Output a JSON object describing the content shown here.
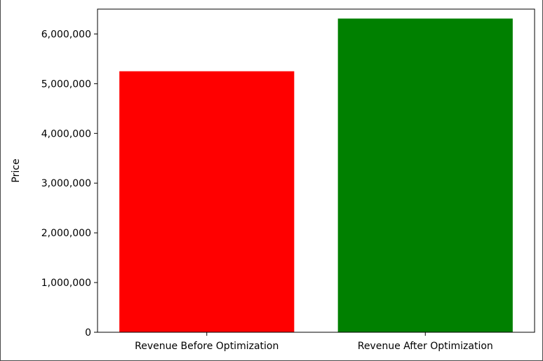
{
  "chart_data": {
    "type": "bar",
    "title": "",
    "xlabel": "",
    "ylabel": "Price",
    "categories": [
      "Revenue Before Optimization",
      "Revenue After Optimization"
    ],
    "values": [
      5250000,
      6310000
    ],
    "colors": [
      "#ff0000",
      "#008000"
    ],
    "ylim": [
      0,
      6500000
    ],
    "yticks": [
      0,
      1000000,
      2000000,
      3000000,
      4000000,
      5000000,
      6000000
    ],
    "ytick_labels": [
      "0",
      "1,000,000",
      "2,000,000",
      "3,000,000",
      "4,000,000",
      "5,000,000",
      "6,000,000"
    ],
    "grid": false,
    "legend": "none"
  }
}
